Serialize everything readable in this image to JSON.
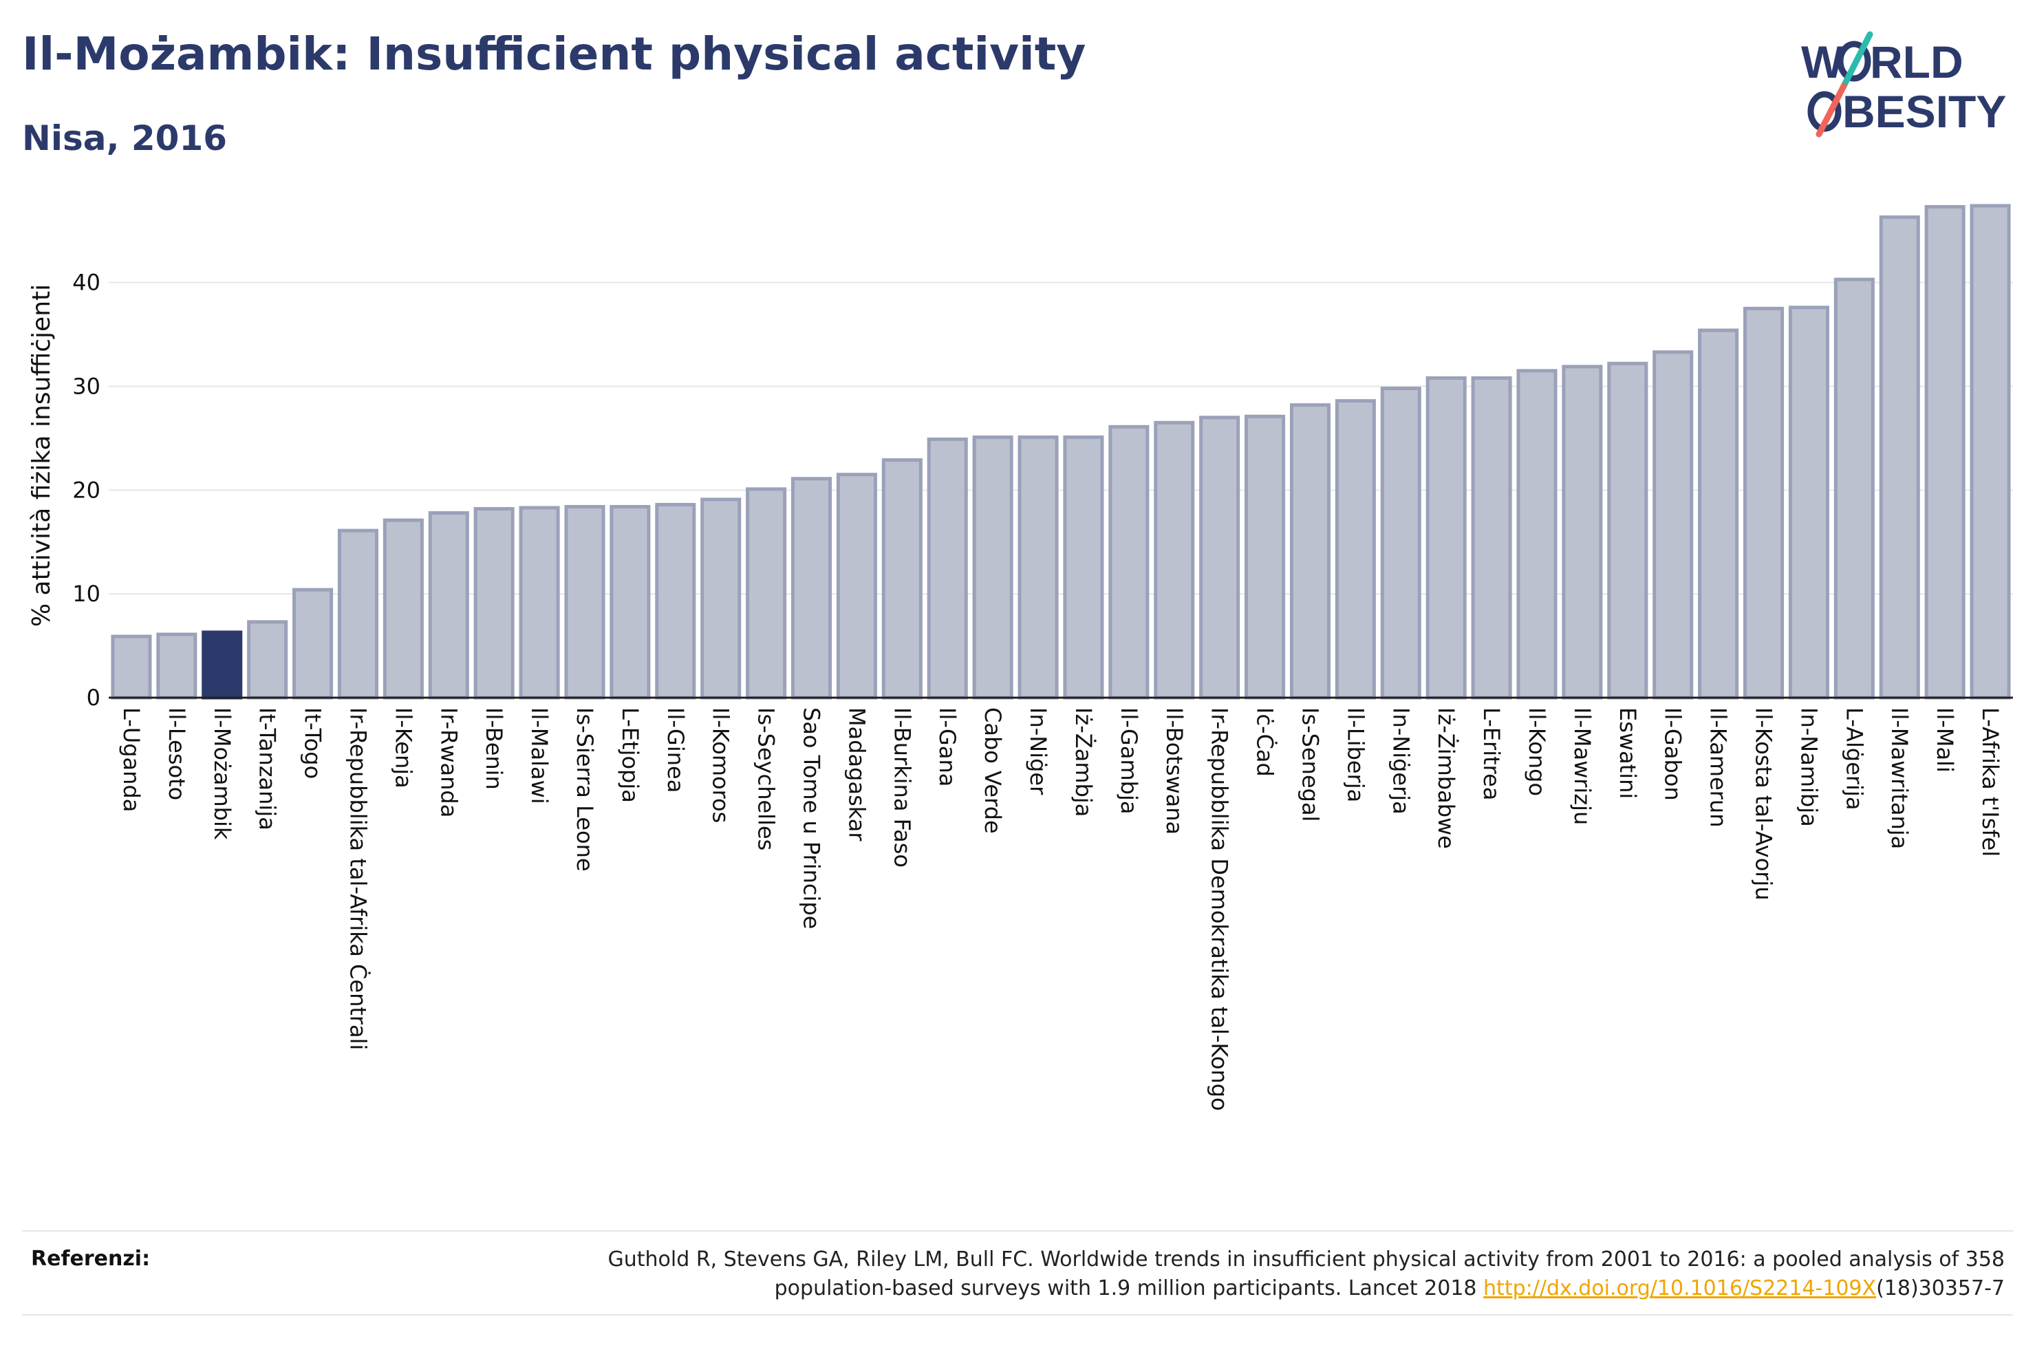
{
  "header": {
    "title": "Il-Możambik: Insufficient physical activity",
    "subtitle": "Nisa, 2016"
  },
  "logo": {
    "line1": "W",
    "line1b": "RLD",
    "line2": "BESITY",
    "colors": {
      "text": "#2c3a6b",
      "teal": "#2bbbad",
      "coral": "#f0645a"
    }
  },
  "chart_data": {
    "type": "bar",
    "ylabel": "% attività fiżika insuffiċjenti",
    "xlabel": "",
    "ylim": [
      0,
      48
    ],
    "yticks": [
      0,
      10,
      20,
      30,
      40
    ],
    "grid": true,
    "highlight_category": "Il-Możambik",
    "colors": {
      "bar": "#bcc1cf",
      "bar_outline": "#9aa1b8",
      "highlight": "#2c3a6b"
    },
    "categories": [
      "L-Uganda",
      "Il-Lesoto",
      "Il-Możambik",
      "It-Tanzanija",
      "It-Togo",
      "Ir-Repubblika tal-Afrika Ċentrali",
      "Il-Kenja",
      "Ir-Rwanda",
      "Il-Benin",
      "Il-Malawi",
      "Is-Sierra Leone",
      "L-Etjopja",
      "Il-Ginea",
      "Il-Komoros",
      "Is-Seychelles",
      "Sao Tome u Principe",
      "Madagaskar",
      "Il-Burkina Faso",
      "Il-Gana",
      "Cabo Verde",
      "In-Niġer",
      "Iż-Żambja",
      "Il-Gambja",
      "Il-Botswana",
      "Ir-Repubblika Demokratika tal-Kongo",
      "Iċ-Ċad",
      "Is-Senegal",
      "Il-Liberja",
      "In-Niġerja",
      "Iż-Żimbabwe",
      "L-Eritrea",
      "Il-Kongo",
      "Il-Mawrizju",
      "Eswatini",
      "Il-Gabon",
      "Il-Kamerun",
      "Il-Kosta tal-Avorju",
      "In-Namibja",
      "L-Alġerija",
      "Il-Mawritanja",
      "Il-Mali",
      "L-Afrika t'Isfel"
    ],
    "values": [
      5.9,
      6.1,
      6.3,
      7.3,
      10.4,
      16.1,
      17.1,
      17.8,
      18.2,
      18.3,
      18.4,
      18.4,
      18.6,
      19.1,
      20.1,
      21.1,
      21.5,
      22.9,
      24.9,
      25.1,
      25.1,
      25.1,
      26.1,
      26.5,
      27.0,
      27.1,
      28.2,
      28.6,
      29.8,
      30.8,
      30.8,
      31.5,
      31.9,
      32.2,
      33.3,
      35.4,
      37.5,
      37.6,
      40.3,
      46.3,
      47.3,
      47.4
    ]
  },
  "footer": {
    "label": "Referenzi:",
    "line1": "Guthold R, Stevens GA, Riley LM, Bull FC. Worldwide trends in insufficient physical activity from 2001 to 2016: a pooled analysis of 358",
    "line2_pre": "population-based surveys with 1.9 million participants. Lancet 2018 ",
    "link": "http://dx.doi.org/10.1016/S2214-109X",
    "line2_post": "(18)30357-7"
  }
}
